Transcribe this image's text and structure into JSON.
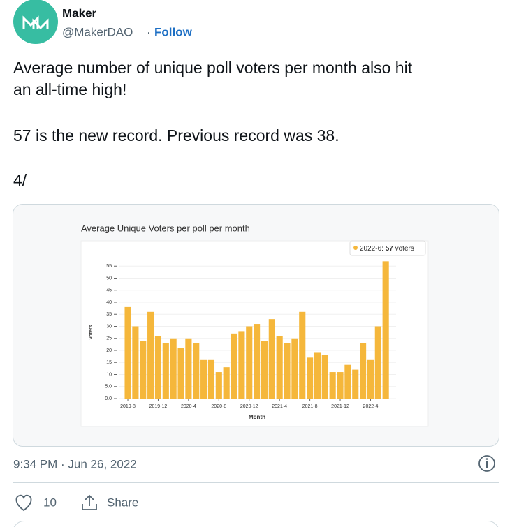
{
  "tweet": {
    "name": "Maker",
    "handle": "@MakerDAO",
    "separator": "·",
    "follow": "Follow",
    "text_lines": [
      "Average number of unique poll voters per month also hit",
      "an all-time high!",
      "57 is the new record. Previous record was 38.",
      "4/"
    ],
    "timestamp": "9:34 PM · Jun 26, 2022",
    "likes": "10",
    "share": "Share"
  },
  "chart_data": {
    "type": "bar",
    "title": "Average Unique Voters per poll per month",
    "x_label": "Month",
    "y_label": "Voters",
    "categories": [
      "2019-8",
      null,
      null,
      null,
      "2019-12",
      null,
      null,
      null,
      "2020-4",
      null,
      null,
      null,
      "2020-8",
      null,
      null,
      null,
      "2020-12",
      null,
      null,
      null,
      "2021-4",
      null,
      null,
      null,
      "2021-8",
      null,
      null,
      null,
      "2021-12",
      null,
      null,
      null,
      "2022-4",
      null,
      null
    ],
    "values": [
      38,
      30,
      24,
      36,
      26,
      23,
      25,
      21,
      25,
      23,
      16,
      16,
      11,
      13,
      27,
      28,
      30,
      31,
      24,
      33,
      26,
      23,
      25,
      36,
      17,
      19,
      18,
      11,
      11,
      14,
      12,
      23,
      16,
      30,
      57
    ],
    "color": "#f5b73b",
    "ylim": [
      0,
      60
    ],
    "yticks": [
      {
        "value": 0,
        "label": "0.0"
      },
      {
        "value": 5,
        "label": "5.0"
      },
      10,
      15,
      20,
      25,
      30,
      35,
      40,
      45,
      50,
      55
    ],
    "grid": true,
    "tooltip": {
      "label": "2022-6:",
      "value": "57",
      "suffix": "voters"
    }
  }
}
